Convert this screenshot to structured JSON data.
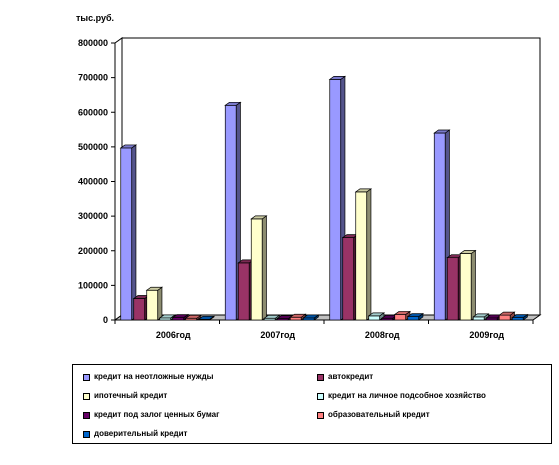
{
  "chart_data": {
    "type": "bar",
    "unit_label": "тыс.руб.",
    "categories": [
      "2006год",
      "2007год",
      "2008год",
      "2009год"
    ],
    "ylim": [
      0,
      800000
    ],
    "yticks": [
      "0",
      "100000",
      "200000",
      "300000",
      "400000",
      "500000",
      "600000",
      "700000",
      "800000"
    ],
    "grid": false,
    "legend_position": "bottom",
    "series": [
      {
        "name": "кредит на неотложные нужды",
        "color": "#9999ff",
        "values": [
          497000,
          620000,
          695000,
          540000
        ]
      },
      {
        "name": "автокредит",
        "color": "#993366",
        "values": [
          62000,
          165000,
          238000,
          180000
        ]
      },
      {
        "name": "ипотечный кредит",
        "color": "#ffffcc",
        "values": [
          86000,
          292000,
          370000,
          192000
        ]
      },
      {
        "name": "кредит на личное подсобное хозяйство",
        "color": "#ccffff",
        "values": [
          6000,
          5000,
          12000,
          9000
        ]
      },
      {
        "name": "кредит под залог ценных бумаг",
        "color": "#660066",
        "values": [
          7000,
          4000,
          5000,
          6000
        ]
      },
      {
        "name": "образовательный кредит",
        "color": "#ff8080",
        "values": [
          5000,
          8000,
          16000,
          14000
        ]
      },
      {
        "name": "доверительный кредит",
        "color": "#0066cc",
        "values": [
          2000,
          6000,
          10000,
          7000
        ]
      }
    ]
  }
}
